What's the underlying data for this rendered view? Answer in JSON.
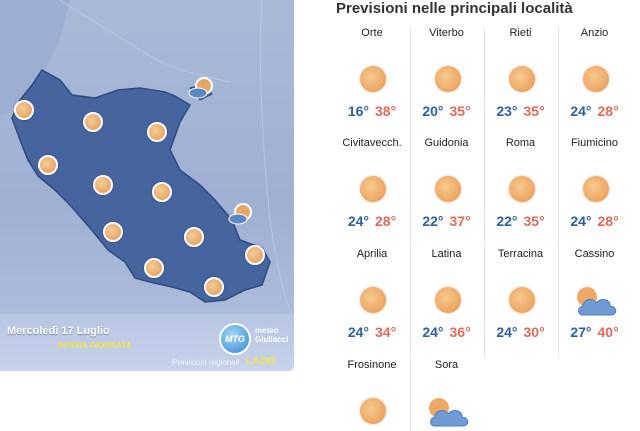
{
  "map": {
    "date": "Mercoledì 17 Luglio",
    "period": "INTERA GIORNATA",
    "logo_badge": "MTG",
    "logo_line1": "meteo",
    "logo_line2": "Giuliacci",
    "caption": "Previsioni regionali",
    "region": "LAZIO"
  },
  "forecast": {
    "title": "Previsioni nelle principali località",
    "cities": [
      {
        "name": "Orte",
        "min": "16°",
        "max": "38°",
        "icon": "sun-icon"
      },
      {
        "name": "Viterbo",
        "min": "20°",
        "max": "35°",
        "icon": "sun-icon"
      },
      {
        "name": "Rieti",
        "min": "23°",
        "max": "35°",
        "icon": "sun-icon"
      },
      {
        "name": "Anzio",
        "min": "24°",
        "max": "28°",
        "icon": "sun-icon"
      },
      {
        "name": "Civitavecch.",
        "min": "24°",
        "max": "28°",
        "icon": "sun-icon"
      },
      {
        "name": "Guidonia",
        "min": "22°",
        "max": "37°",
        "icon": "sun-icon"
      },
      {
        "name": "Roma",
        "min": "22°",
        "max": "35°",
        "icon": "sun-icon"
      },
      {
        "name": "Fiumicino",
        "min": "24°",
        "max": "28°",
        "icon": "sun-icon"
      },
      {
        "name": "Aprilia",
        "min": "24°",
        "max": "34°",
        "icon": "sun-icon"
      },
      {
        "name": "Latina",
        "min": "24°",
        "max": "36°",
        "icon": "sun-icon"
      },
      {
        "name": "Terracina",
        "min": "24°",
        "max": "30°",
        "icon": "sun-icon"
      },
      {
        "name": "Cassino",
        "min": "27°",
        "max": "40°",
        "icon": "partly-cloudy-icon"
      },
      {
        "name": "Frosinone",
        "min": "",
        "max": "",
        "icon": "sun-icon"
      },
      {
        "name": "Sora",
        "min": "",
        "max": "",
        "icon": "partly-cloudy-icon"
      }
    ]
  },
  "colors": {
    "region_fill": "#46659e",
    "min_temp": "#2e5fa3",
    "max_temp": "#e06a5a",
    "accent_yellow": "#f5e24a"
  }
}
